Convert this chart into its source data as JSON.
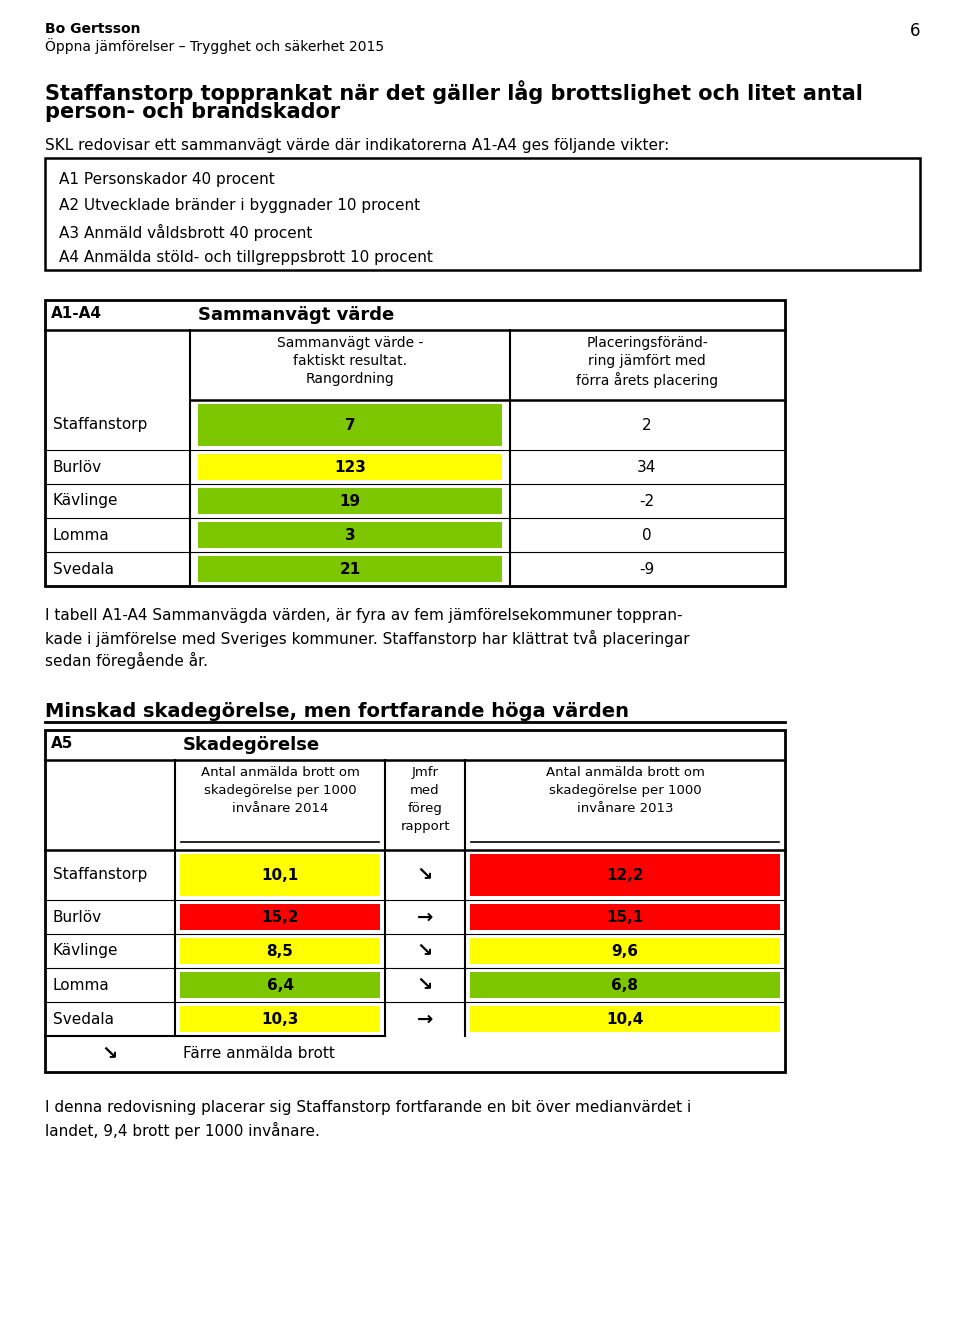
{
  "page_header_left1": "Bo Gertsson",
  "page_header_left2": "Öppna jämförelser – Trygghet och säkerhet 2015",
  "page_number": "6",
  "section1_title_line1": "Staffanstorp topprankat när det gäller låg brottslighet och litet antal",
  "section1_title_line2": "person- och brandskador",
  "section1_intro": "SKL redovisar ett sammanvägt värde där indikatorerna A1-A4 ges följande vikter:",
  "box_lines": [
    "A1 Personskador 40 procent",
    "A2 Utvecklade bränder i byggnader 10 procent",
    "A3 Anmäld våldsbrott 40 procent",
    "A4 Anmälda stöld- och tillgreppsbrott 10 procent"
  ],
  "table1_header_col1": "A1-A4",
  "table1_header_col2": "Sammanvägt värde",
  "table1_subheader_col2": "Sammanvägt värde -\nfaktiskt resultat.\nRangordning",
  "table1_subheader_col3": "Placeringsföränd-\nring jämfört med\nförra årets placering",
  "table1_rows": [
    {
      "name": "Staffanstorp",
      "rank": "7",
      "change": "2",
      "rank_color": "#7dc700",
      "is_staffanstorp": true
    },
    {
      "name": "Burlöv",
      "rank": "123",
      "change": "34",
      "rank_color": "#ffff00",
      "is_staffanstorp": false
    },
    {
      "name": "Kävlinge",
      "rank": "19",
      "change": "-2",
      "rank_color": "#7dc700",
      "is_staffanstorp": false
    },
    {
      "name": "Lomma",
      "rank": "3",
      "change": "0",
      "rank_color": "#7dc700",
      "is_staffanstorp": false
    },
    {
      "name": "Svedala",
      "rank": "21",
      "change": "-9",
      "rank_color": "#7dc700",
      "is_staffanstorp": false
    }
  ],
  "section1_footer_lines": [
    "I tabell A1-A4 Sammanvägda värden, är fyra av fem jämförelsekommuner toppran-",
    "kade i jämförelse med Sveriges kommuner. Staffanstorp har klättrat två placeringar",
    "sedan föregående år."
  ],
  "section2_title": "Minskad skadegörelse, men fortfarande höga värden",
  "table2_header_col1": "A5",
  "table2_header_col2": "Skadegörelse",
  "table2_subheader_col2_lines": [
    "Antal anmälda brott om",
    "skadegörelse per 1000",
    "invånare 2014"
  ],
  "table2_subheader_col3_lines": [
    "Jmfr",
    "med",
    "föreg",
    "rapport"
  ],
  "table2_subheader_col4_lines": [
    "Antal anmälda brott om",
    "skadegörelse per 1000",
    "invånare 2013"
  ],
  "table2_rows": [
    {
      "name": "Staffanstorp",
      "val2014": "10,1",
      "arrow": "↘",
      "val2013": "12,2",
      "color2014": "#ffff00",
      "color2013": "#ff0000",
      "is_staffanstorp": true
    },
    {
      "name": "Burlöv",
      "val2014": "15,2",
      "arrow": "→",
      "val2013": "15,1",
      "color2014": "#ff0000",
      "color2013": "#ff0000",
      "is_staffanstorp": false
    },
    {
      "name": "Kävlinge",
      "val2014": "8,5",
      "arrow": "↘",
      "val2013": "9,6",
      "color2014": "#ffff00",
      "color2013": "#ffff00",
      "is_staffanstorp": false
    },
    {
      "name": "Lomma",
      "val2014": "6,4",
      "arrow": "↘",
      "val2013": "6,8",
      "color2014": "#7dc700",
      "color2013": "#7dc700",
      "is_staffanstorp": false
    },
    {
      "name": "Svedala",
      "val2014": "10,3",
      "arrow": "→",
      "val2013": "10,4",
      "color2014": "#ffff00",
      "color2013": "#ffff00",
      "is_staffanstorp": false
    }
  ],
  "table2_legend_arrow": "↘",
  "table2_legend_text": "Färre anmälda brott",
  "section2_footer_lines": [
    "I denna redovisning placerar sig Staffanstorp fortfarande en bit över medianvärdet i",
    "landet, 9,4 brott per 1000 invånare."
  ],
  "bg_color": "#ffffff",
  "text_color": "#000000"
}
